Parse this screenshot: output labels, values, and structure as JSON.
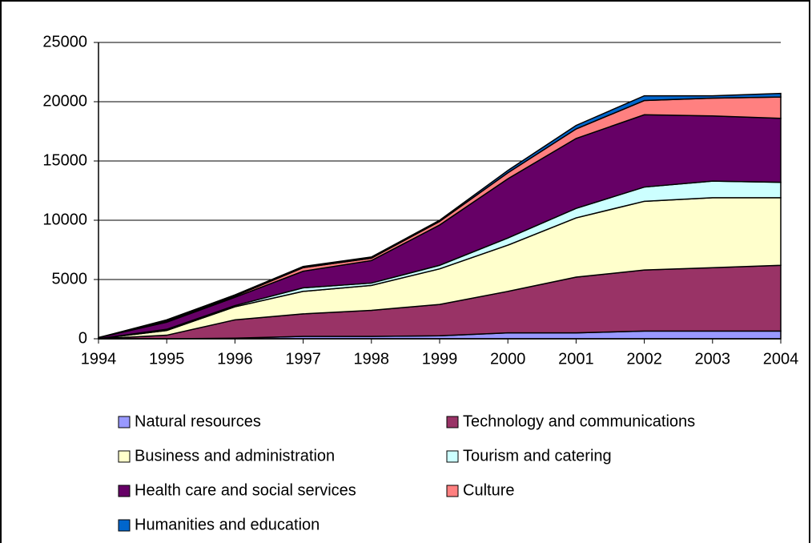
{
  "chart_data": {
    "type": "stacked-area",
    "categories": [
      "1994",
      "1995",
      "1996",
      "1997",
      "1998",
      "1999",
      "2000",
      "2001",
      "2002",
      "2003",
      "2004"
    ],
    "series": [
      {
        "name": "Natural resources",
        "color": "#9999ff",
        "values": [
          0,
          0,
          50,
          200,
          200,
          250,
          500,
          500,
          650,
          650,
          650
        ]
      },
      {
        "name": "Technology and communications",
        "color": "#993366",
        "values": [
          0,
          300,
          1550,
          1900,
          2200,
          2650,
          3500,
          4700,
          5150,
          5350,
          5550
        ]
      },
      {
        "name": "Business and administration",
        "color": "#ffffcc",
        "values": [
          0,
          400,
          1100,
          1900,
          2100,
          3000,
          3900,
          5000,
          5800,
          5900,
          5700
        ]
      },
      {
        "name": "Tourism and catering",
        "color": "#ccffff",
        "values": [
          0,
          100,
          100,
          300,
          200,
          300,
          600,
          800,
          1200,
          1400,
          1300
        ]
      },
      {
        "name": "Health care and social services",
        "color": "#660066",
        "values": [
          100,
          600,
          700,
          1400,
          1900,
          3400,
          5000,
          5900,
          6100,
          5500,
          5400
        ]
      },
      {
        "name": "Culture",
        "color": "#ff8080",
        "values": [
          0,
          100,
          100,
          300,
          200,
          300,
          500,
          800,
          1200,
          1500,
          1800
        ]
      },
      {
        "name": "Humanities and education",
        "color": "#0066cc",
        "values": [
          0,
          100,
          100,
          100,
          100,
          100,
          200,
          300,
          400,
          200,
          300
        ]
      }
    ],
    "ylim": [
      0,
      25000
    ],
    "yticks": [
      0,
      5000,
      10000,
      15000,
      20000,
      25000
    ],
    "grid": true
  }
}
